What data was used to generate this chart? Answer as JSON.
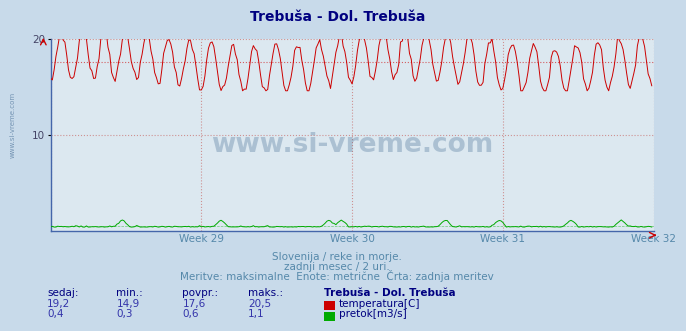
{
  "title": "Trebuša - Dol. Trebuša",
  "title_color": "#000080",
  "bg_color": "#c8daea",
  "plot_bg_color": "#dce8f0",
  "grid_color": "#cc8888",
  "ylim": [
    0,
    20
  ],
  "yticks": [
    10,
    20
  ],
  "x_week_labels": [
    "Week 29",
    "Week 30",
    "Week 31",
    "Week 32"
  ],
  "temp_color": "#cc0000",
  "flow_color": "#00aa00",
  "temp_avg": 17.6,
  "temp_min": 14.9,
  "temp_max": 20.5,
  "temp_current": 19.2,
  "flow_avg": 0.6,
  "flow_min": 0.3,
  "flow_max": 1.1,
  "flow_current": 0.4,
  "footer_line1": "Slovenija / reke in morje.",
  "footer_line2": "zadnji mesec / 2 uri.",
  "footer_line3": "Meritve: maksimalne  Enote: metrične  Črta: zadnja meritev",
  "footer_color": "#5588aa",
  "table_headers": [
    "sedaj:",
    "min.:",
    "povpr.:",
    "maks.:",
    "Trebuša - Dol. Trebuša"
  ],
  "table_color": "#000080",
  "watermark": "www.si-vreme.com",
  "watermark_color": "#1a4a7a",
  "axis_color": "#4466aa",
  "n_points": 336,
  "n_days": 28,
  "temp_scale_max": 20,
  "flow_scale": 0.055
}
